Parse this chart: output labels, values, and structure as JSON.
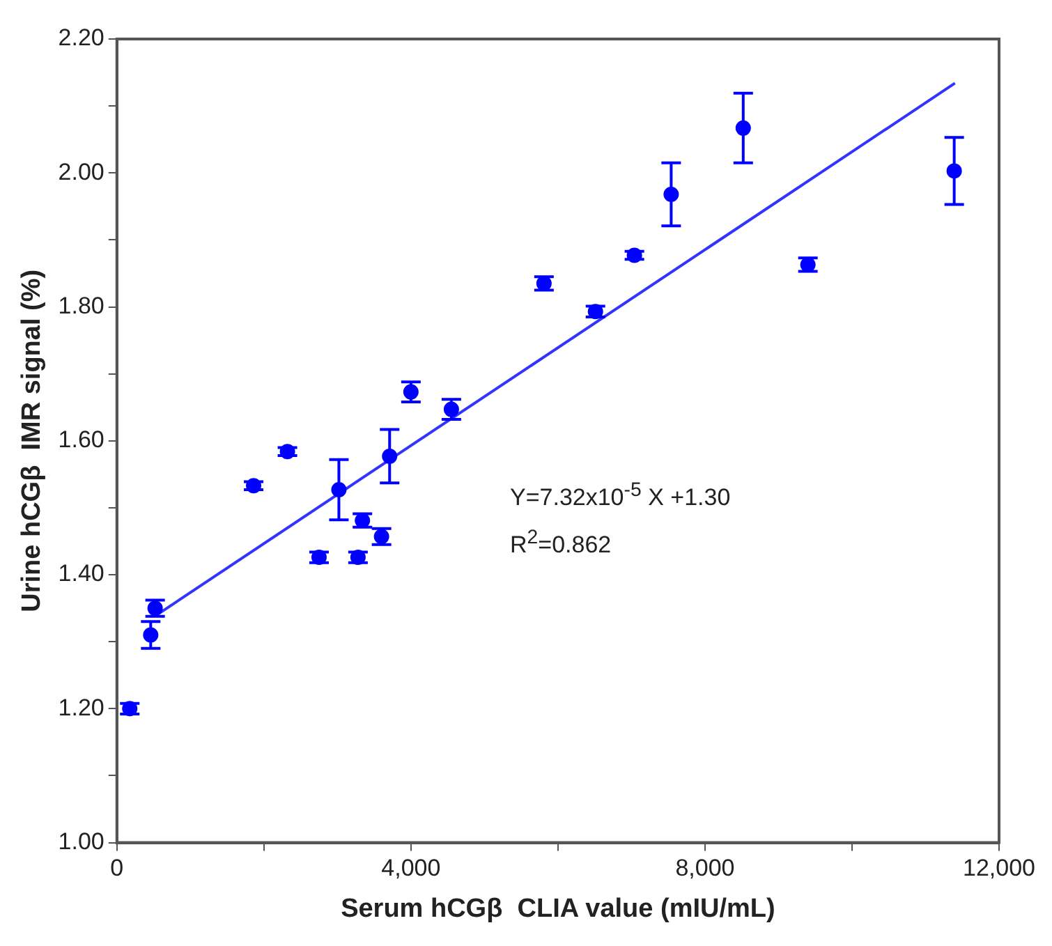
{
  "chart_data": {
    "type": "scatter",
    "xlabel": "Serum hCGβ  CLIA value (mIU/mL)",
    "ylabel": "Urine hCGβ  IMR signal (%)",
    "xlim": [
      0,
      12000
    ],
    "xticks": [
      0,
      {
        "value": 2000,
        "label": null
      },
      {
        "value": 4000,
        "label": "4,000"
      },
      {
        "value": 6000,
        "label": null
      },
      {
        "value": 8000,
        "label": "8,000"
      },
      {
        "value": 10000,
        "label": null
      },
      {
        "value": 12000,
        "label": "12,000"
      }
    ],
    "ylim": [
      1,
      2.2
    ],
    "yticks": [
      {
        "value": 1,
        "label": "1.00"
      },
      {
        "value": 1.1,
        "label": null
      },
      {
        "value": 1.2,
        "label": "1.20"
      },
      {
        "value": 1.3,
        "label": null
      },
      {
        "value": 1.4,
        "label": "1.40"
      },
      {
        "value": 1.5,
        "label": null
      },
      {
        "value": 1.6,
        "label": "1.60"
      },
      {
        "value": 1.7,
        "label": null
      },
      {
        "value": 1.8,
        "label": "1.80"
      },
      {
        "value": 1.9,
        "label": null
      },
      {
        "value": 2,
        "label": "2.00"
      },
      {
        "value": 2.1,
        "label": null
      },
      {
        "value": 2.2,
        "label": "2.20"
      }
    ],
    "grid": false,
    "legend": false,
    "marker": "circle",
    "annotations": [
      "Y=7.32x10$^{-5}$ X +1.30",
      "R$^{2}$=0.862"
    ],
    "series": [
      {
        "type": "scatter",
        "color": "#0000ff",
        "x": [
          175,
          460,
          520,
          1860,
          2320,
          3020,
          2750,
          3280,
          3340,
          3600,
          3710,
          4000,
          4550,
          5810,
          6510,
          7040,
          7540,
          8520,
          9400,
          11390
        ],
        "values": [
          1.2,
          1.31,
          1.35,
          1.533,
          1.584,
          1.527,
          1.426,
          1.426,
          1.481,
          1.457,
          1.577,
          1.673,
          1.647,
          1.835,
          1.793,
          1.877,
          1.968,
          2.067,
          1.863,
          2.003
        ],
        "errors": [
          0.008,
          0.02,
          0.012,
          0.006,
          0.006,
          0.045,
          0.008,
          0.008,
          0.01,
          0.012,
          0.04,
          0.015,
          0.015,
          0.01,
          0.008,
          0.006,
          0.047,
          0.052,
          0.01,
          0.05
        ]
      },
      {
        "type": "line",
        "color": "#3333ff",
        "x": [
          570,
          11400
        ],
        "values": [
          1.342,
          2.134
        ],
        "marker": "none",
        "line_style": "solid"
      }
    ]
  }
}
